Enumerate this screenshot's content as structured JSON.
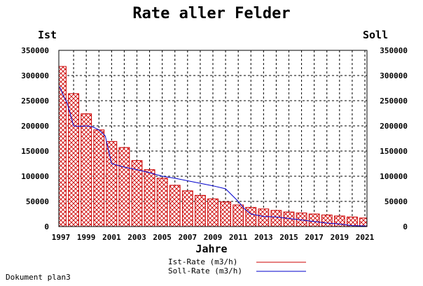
{
  "footer": "Dokument plan3",
  "chart_data": {
    "type": "bar",
    "title": "Rate aller Felder",
    "ylabel_left": "Ist",
    "ylabel_right": "Soll",
    "xlabel": "Jahre",
    "ylim": [
      0,
      350000
    ],
    "yticks": [
      0,
      50000,
      100000,
      150000,
      200000,
      250000,
      300000,
      350000
    ],
    "xtick_labels": [
      "1997",
      "1999",
      "2001",
      "2003",
      "2005",
      "2007",
      "2009",
      "2011",
      "2013",
      "2015",
      "2017",
      "2019",
      "2021"
    ],
    "grid": true,
    "legend_position": "bottom-center",
    "categories": [
      "1997",
      "1998",
      "1999",
      "2000",
      "2001",
      "2002",
      "2003",
      "2004",
      "2005",
      "2006",
      "2007",
      "2008",
      "2009",
      "2010",
      "2011",
      "2012",
      "2013",
      "2014",
      "2015",
      "2016",
      "2017",
      "2018",
      "2019",
      "2020",
      "2021"
    ],
    "series": [
      {
        "name": "Ist-Rate (m3/h)",
        "kind": "bar",
        "color": "#cc0000",
        "values": [
          318000,
          264000,
          224000,
          192000,
          169000,
          157000,
          131000,
          113000,
          96000,
          82000,
          71000,
          62000,
          55000,
          49000,
          43000,
          38000,
          35000,
          32000,
          29000,
          27000,
          25000,
          23000,
          21000,
          19000,
          17000
        ]
      },
      {
        "name": "Soll-Rate (m3/h)",
        "kind": "line",
        "color": "#0000cc",
        "x": [
          1996.9,
          1997.2,
          1997.5,
          1998.0,
          1998.5,
          1999.0,
          1999.5,
          2000.0,
          2000.5,
          2001.0,
          2002.0,
          2003.0,
          2004.0,
          2005.0,
          2006.0,
          2007.0,
          2008.0,
          2009.0,
          2010.0,
          2011.0,
          2011.5,
          2012.0,
          2013.0,
          2014.0,
          2015.0,
          2016.0,
          2017.0,
          2018.0,
          2019.0,
          2020.0,
          2021.1
        ],
        "values": [
          278000,
          260000,
          245000,
          200000,
          199000,
          200000,
          198000,
          192000,
          180000,
          125000,
          118000,
          113000,
          107000,
          100000,
          96000,
          91000,
          86000,
          81000,
          75000,
          50000,
          35000,
          25000,
          20000,
          19000,
          16000,
          13000,
          10000,
          7000,
          5000,
          2000,
          1000
        ]
      }
    ]
  }
}
